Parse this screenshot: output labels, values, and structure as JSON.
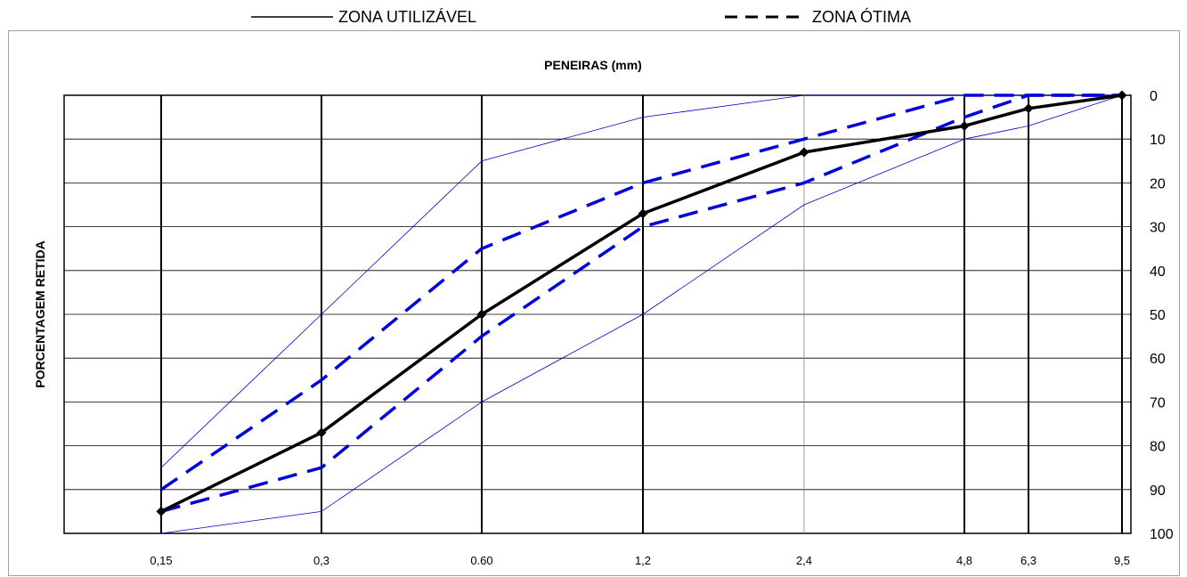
{
  "legend": {
    "utilizavel_label": "ZONA UTILIZÁVEL",
    "otima_label": "ZONA ÓTIMA"
  },
  "chart_data": {
    "type": "line",
    "title": "PENEIRAS (mm)",
    "xlabel": "",
    "ylabel": "PORCENTAGEM RETIDA",
    "x_categories": [
      "0,15",
      "0,3",
      "0.60",
      "1,2",
      "2,4",
      "4,8",
      "6,3",
      "9,5"
    ],
    "y_ticks": [
      "0",
      "10",
      "20",
      "30",
      "40",
      "50",
      "60",
      "70",
      "80",
      "90",
      "100"
    ],
    "ylim": [
      0,
      100
    ],
    "y_inverted": true,
    "y_axis_side": "right",
    "grid": true,
    "legend_position": "top",
    "colors": {
      "utilizavel": "#0000cc",
      "otima": "#0000dd",
      "amostra": "#000000"
    },
    "series": [
      {
        "key": "util_lower",
        "style": "thin-blue",
        "values": [
          85,
          50,
          15,
          5,
          0,
          0,
          0,
          0
        ]
      },
      {
        "key": "util_upper",
        "style": "thin-blue",
        "values": [
          100,
          95,
          70,
          50,
          25,
          10,
          7,
          0
        ]
      },
      {
        "key": "otima_lower",
        "style": "dashed-blue",
        "values": [
          90,
          65,
          35,
          20,
          10,
          0,
          0,
          0
        ]
      },
      {
        "key": "otima_upper",
        "style": "dashed-blue",
        "values": [
          95,
          85,
          55,
          30,
          20,
          5,
          0,
          0
        ]
      },
      {
        "key": "amostra",
        "style": "black-marker",
        "values": [
          95,
          77,
          50,
          27,
          13,
          7,
          3,
          0
        ]
      }
    ]
  }
}
